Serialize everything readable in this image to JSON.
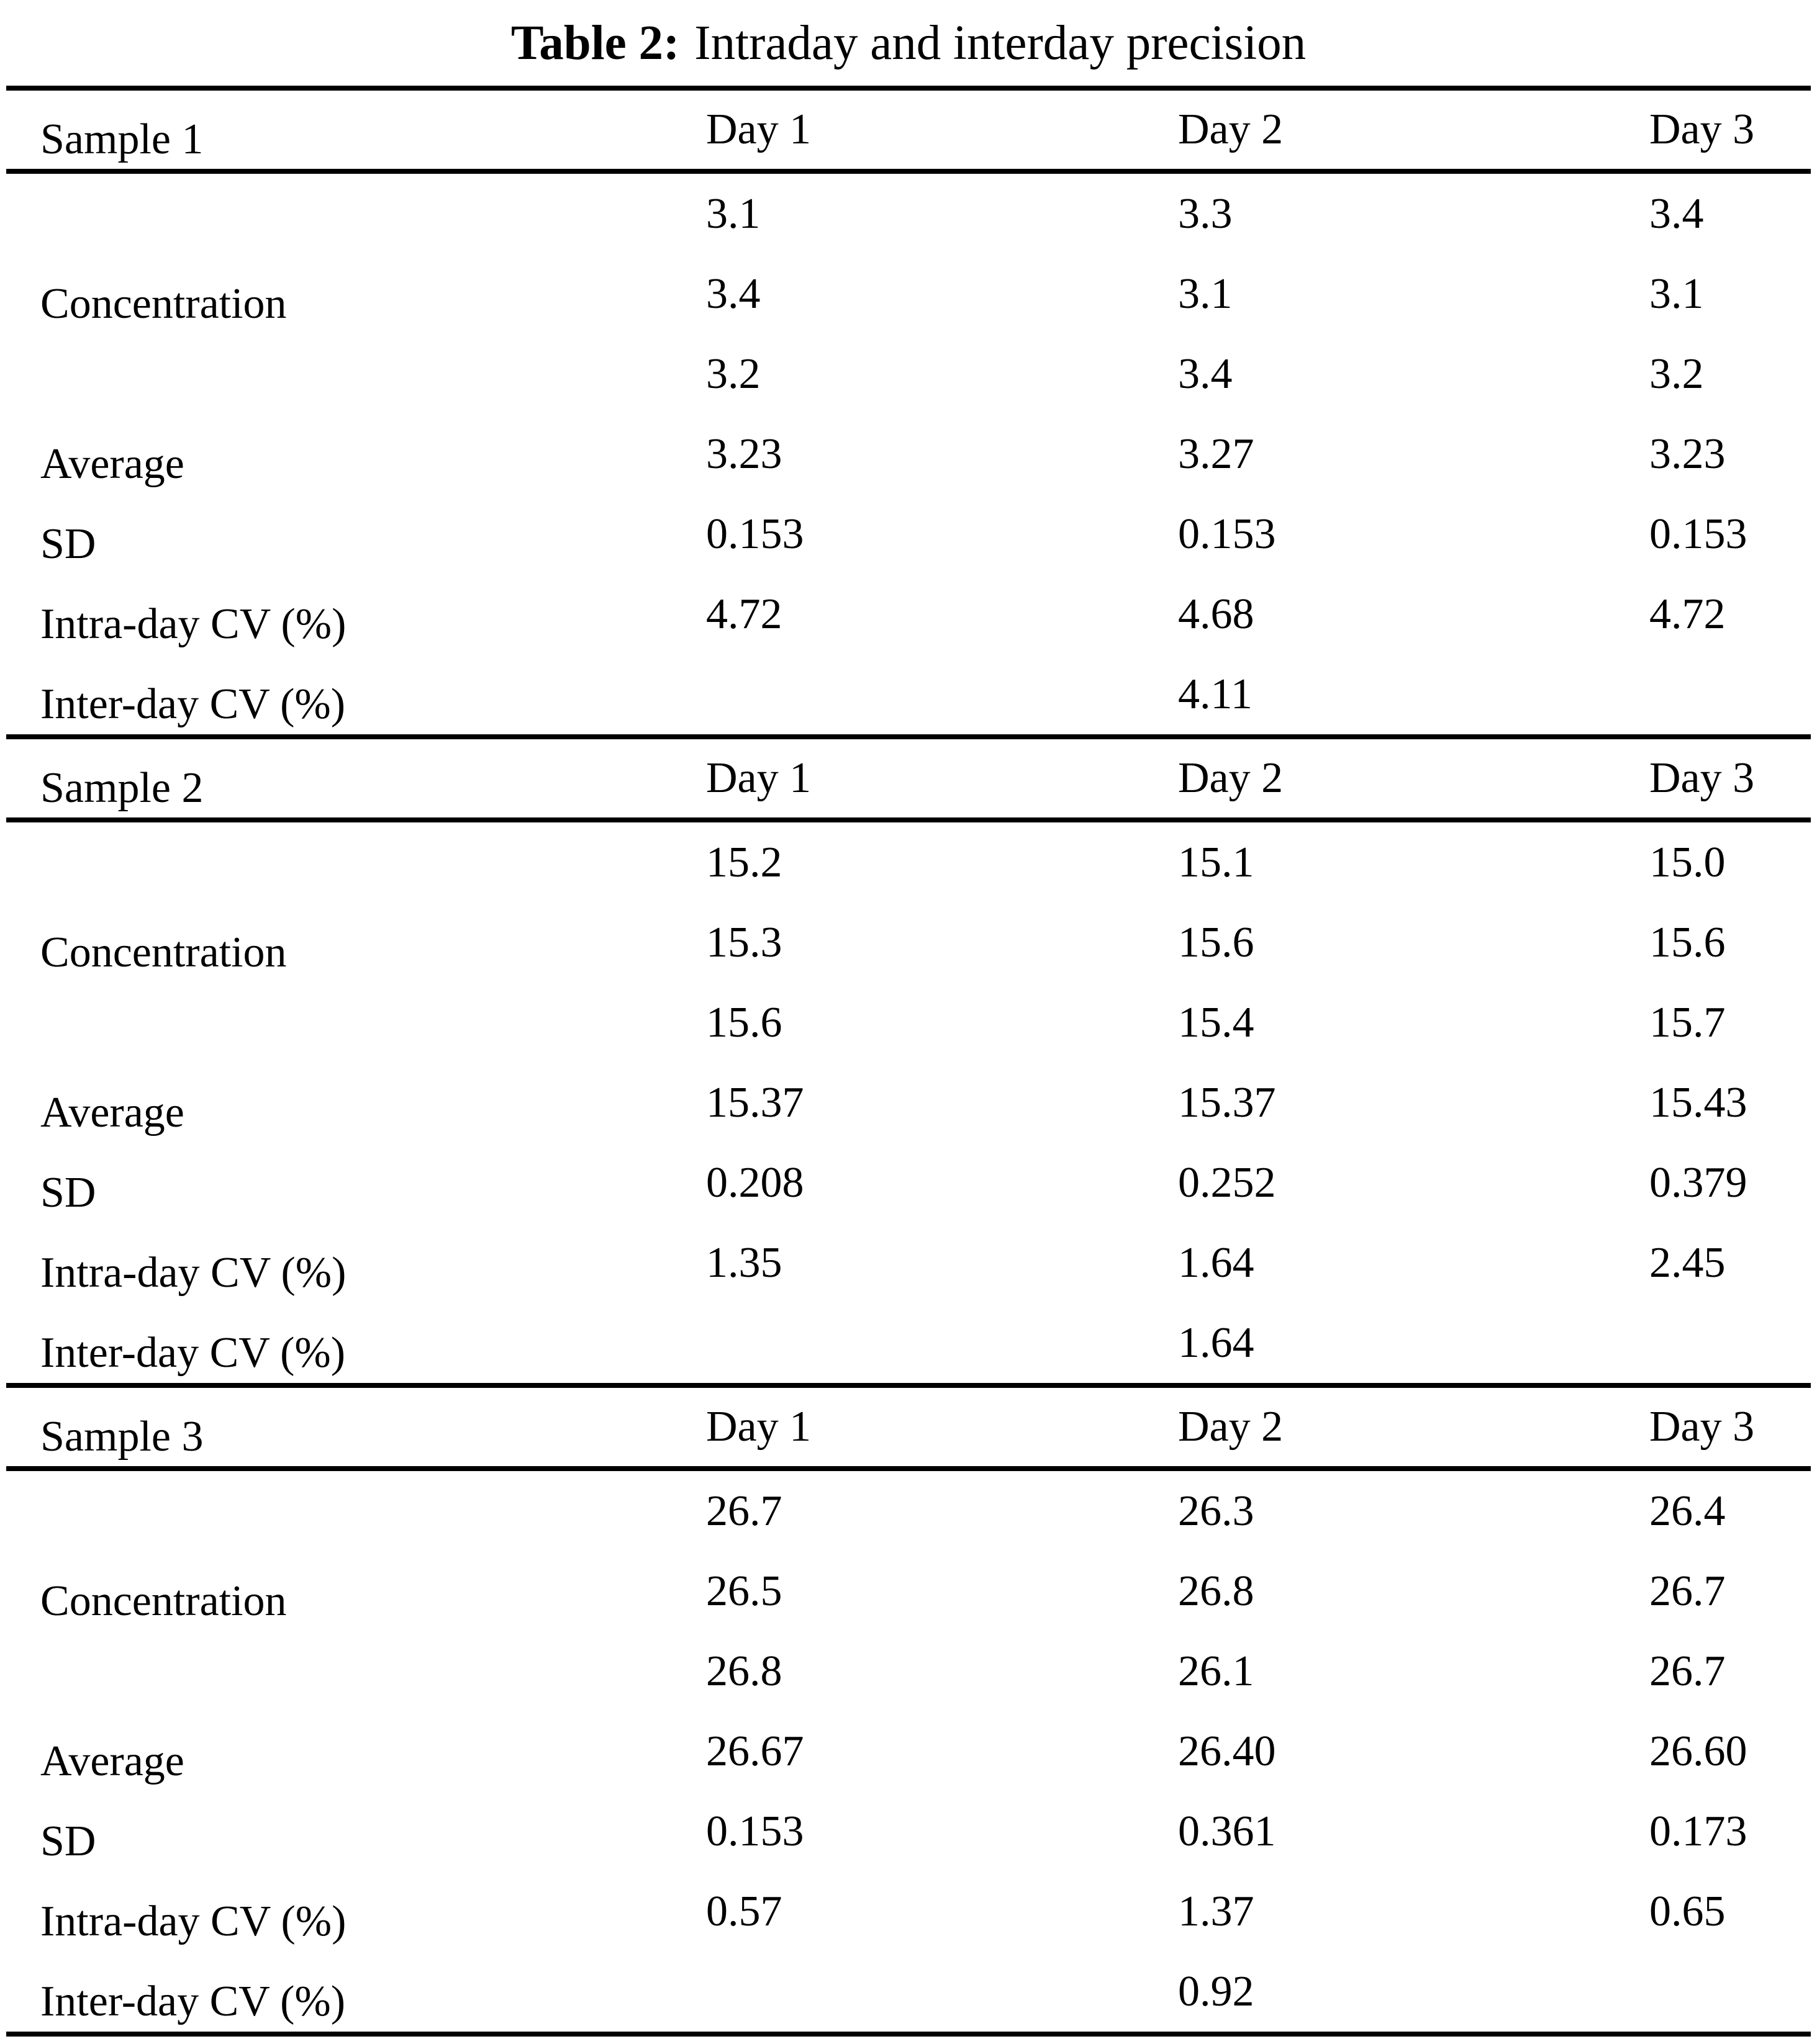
{
  "title": {
    "bold": "Table 2:",
    "rest": "Intraday and interday precision"
  },
  "day_headers": [
    "Day 1",
    "Day 2",
    "Day 3"
  ],
  "row_labels": {
    "concentration": "Concentration",
    "average": "Average",
    "sd": "SD",
    "intraday": "Intra-day CV (%)",
    "interday": "Inter-day CV (%)"
  },
  "samples": [
    {
      "name": "Sample 1",
      "concentration_rows": [
        [
          "3.1",
          "3.3",
          "3.4"
        ],
        [
          "3.4",
          "3.1",
          "3.1"
        ],
        [
          "3.2",
          "3.4",
          "3.2"
        ]
      ],
      "average": [
        "3.23",
        "3.27",
        "3.23"
      ],
      "sd": [
        "0.153",
        "0.153",
        "0.153"
      ],
      "intraday_cv": [
        "4.72",
        "4.68",
        "4.72"
      ],
      "interday_cv": "4.11"
    },
    {
      "name": "Sample 2",
      "concentration_rows": [
        [
          "15.2",
          "15.1",
          "15.0"
        ],
        [
          "15.3",
          "15.6",
          "15.6"
        ],
        [
          "15.6",
          "15.4",
          "15.7"
        ]
      ],
      "average": [
        "15.37",
        "15.37",
        "15.43"
      ],
      "sd": [
        "0.208",
        "0.252",
        "0.379"
      ],
      "intraday_cv": [
        "1.35",
        "1.64",
        "2.45"
      ],
      "interday_cv": "1.64"
    },
    {
      "name": "Sample 3",
      "concentration_rows": [
        [
          "26.7",
          "26.3",
          "26.4"
        ],
        [
          "26.5",
          "26.8",
          "26.7"
        ],
        [
          "26.8",
          "26.1",
          "26.7"
        ]
      ],
      "average": [
        "26.67",
        "26.40",
        "26.60"
      ],
      "sd": [
        "0.153",
        "0.361",
        "0.173"
      ],
      "intraday_cv": [
        "0.57",
        "1.37",
        "0.65"
      ],
      "interday_cv": "0.92"
    }
  ]
}
